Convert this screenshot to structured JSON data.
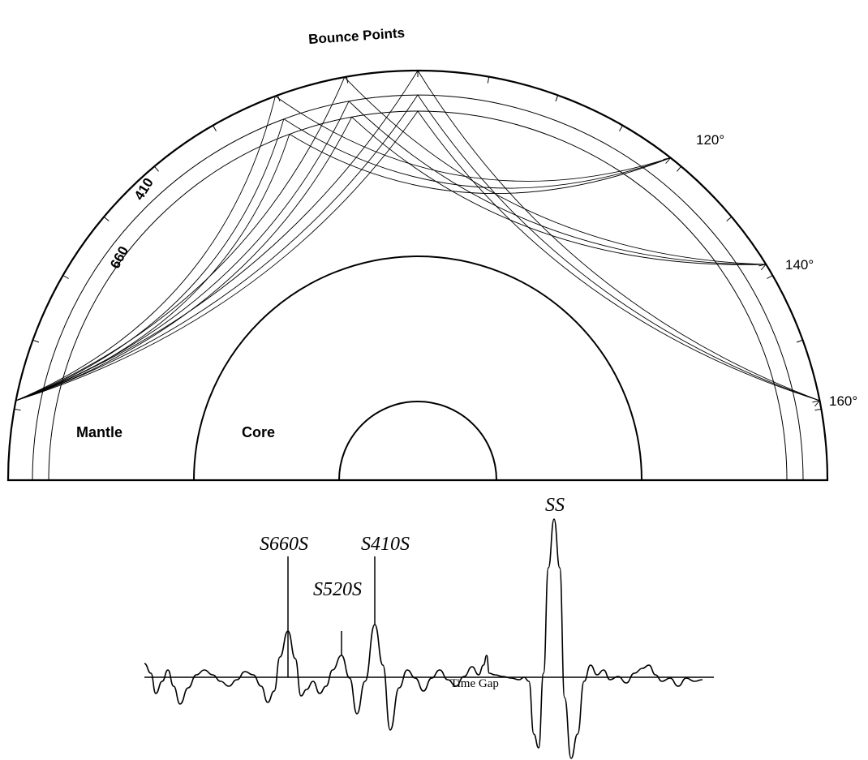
{
  "diagram": {
    "title": "Bounce Points",
    "distances": [
      "120°",
      "140°",
      "160°"
    ],
    "depths": [
      "410",
      "660"
    ],
    "regions": [
      "Mantle",
      "Core"
    ],
    "phases": [
      "S660S",
      "S520S",
      "S410S",
      "SS"
    ],
    "gap_label": "Time Gap"
  }
}
